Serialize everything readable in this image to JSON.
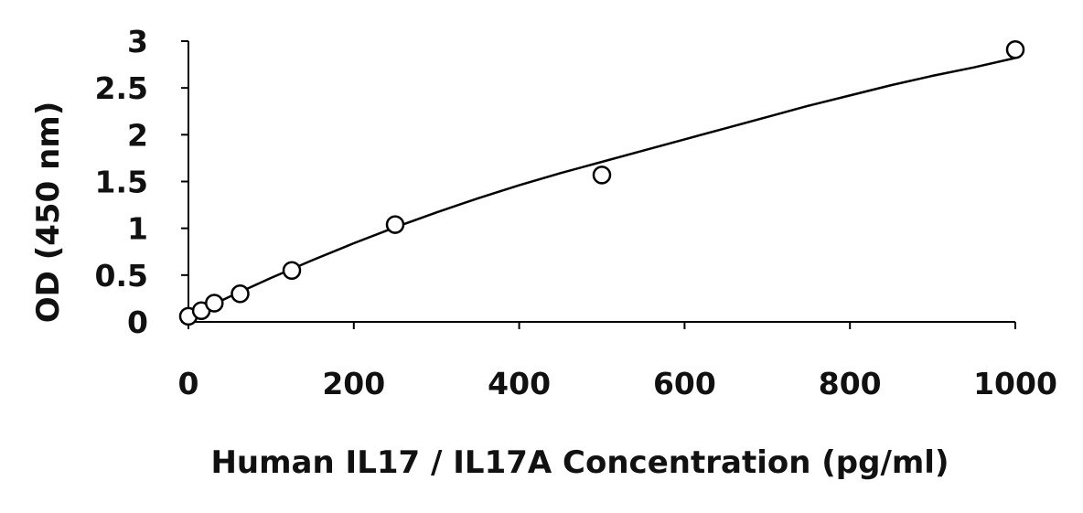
{
  "chart_data": {
    "type": "scatter",
    "xlabel": "Human IL17 / IL17A Concentration (pg/ml)",
    "ylabel": "OD (450 nm)",
    "xlim": [
      0,
      1000
    ],
    "ylim": [
      0,
      3
    ],
    "x_ticks": [
      0,
      200,
      400,
      600,
      800,
      1000
    ],
    "y_ticks": [
      0,
      0.5,
      1,
      1.5,
      2,
      2.5,
      3
    ],
    "x_tick_labels": [
      "0",
      "200",
      "400",
      "600",
      "800",
      "1000"
    ],
    "y_tick_labels": [
      "0",
      "0.5",
      "1",
      "1.5",
      "2",
      "2.5",
      "3"
    ],
    "grid": false,
    "legend": "none",
    "marker": "open-circle",
    "series": [
      {
        "x": [
          0,
          15.6,
          31.3,
          62.5,
          125,
          250,
          500,
          1000
        ],
        "y": [
          0.06,
          0.12,
          0.2,
          0.3,
          0.55,
          1.04,
          1.57,
          2.91
        ]
      }
    ],
    "fit_curve": {
      "x": [
        0,
        50,
        100,
        150,
        200,
        250,
        300,
        350,
        400,
        450,
        500,
        550,
        600,
        650,
        700,
        750,
        800,
        850,
        900,
        950,
        1000
      ],
      "y": [
        0.06,
        0.27,
        0.47,
        0.66,
        0.84,
        1.01,
        1.17,
        1.32,
        1.46,
        1.59,
        1.71,
        1.83,
        1.95,
        2.07,
        2.19,
        2.31,
        2.42,
        2.53,
        2.63,
        2.72,
        2.82
      ]
    }
  }
}
